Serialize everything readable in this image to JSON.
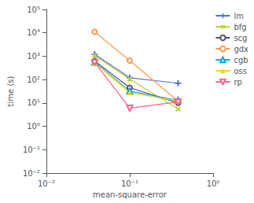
{
  "chart_data": {
    "type": "line",
    "xlabel": "mean-square-error",
    "ylabel": "time (s)",
    "log": true,
    "grid": false,
    "legend": "upper right",
    "xlim": [
      0.01,
      1.0
    ],
    "ylim": [
      0.01,
      100000
    ],
    "xticks": [
      {
        "value": 0.01,
        "label": "10⁻²"
      },
      {
        "value": 0.1,
        "label": "10⁻¹"
      },
      {
        "value": 1,
        "label": "10⁰"
      }
    ],
    "yticks": [
      {
        "value": 0.01,
        "label": "10⁻²"
      },
      {
        "value": 0.1,
        "label": "10⁻¹"
      },
      {
        "value": 1,
        "label": "10⁰"
      },
      {
        "value": 10,
        "label": "10¹"
      },
      {
        "value": 100,
        "label": "10²"
      },
      {
        "value": 1000,
        "label": "10³"
      },
      {
        "value": 10000,
        "label": "10⁴"
      },
      {
        "value": 100000,
        "label": "10⁵"
      }
    ],
    "x": [
      0.038,
      0.1,
      0.38
    ],
    "series": [
      {
        "name": "lm",
        "values": [
          1200,
          120,
          70
        ],
        "marker": "plus"
      },
      {
        "name": "bfg",
        "values": [
          1050,
          105,
          5.5
        ],
        "marker": "x"
      },
      {
        "name": "scg",
        "values": [
          620,
          45,
          10
        ],
        "marker": "circle_open"
      },
      {
        "name": "gdx",
        "values": [
          11000,
          650,
          12
        ],
        "marker": "circle_open"
      },
      {
        "name": "cgb",
        "values": [
          560,
          32,
          13
        ],
        "marker": "triangle_open"
      },
      {
        "name": "oss",
        "values": [
          520,
          28,
          12
        ],
        "marker": "triangle"
      },
      {
        "name": "rp",
        "values": [
          540,
          6.0,
          11
        ],
        "marker": "triangle_down_open"
      }
    ]
  }
}
